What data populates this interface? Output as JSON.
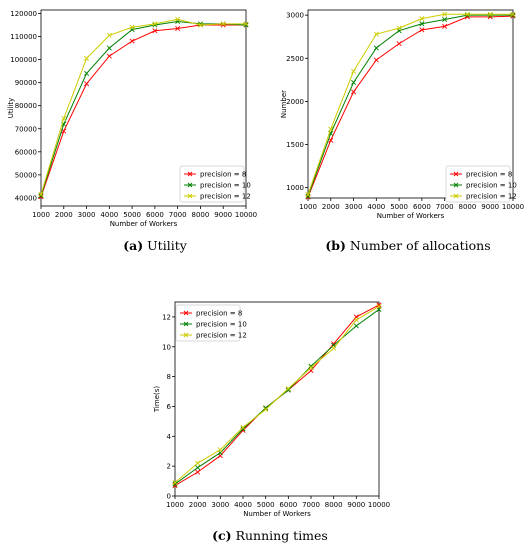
{
  "captions": [
    {
      "letter": "(a)",
      "text": "Utility"
    },
    {
      "letter": "(b)",
      "text": "Number of allocations"
    },
    {
      "letter": "(c)",
      "text": "Running times"
    }
  ],
  "chart_data": [
    {
      "type": "line",
      "xlabel": "Number of Workers",
      "ylabel": "Utility",
      "x": [
        1000,
        2000,
        3000,
        4000,
        5000,
        6000,
        7000,
        8000,
        9000,
        10000
      ],
      "xlim": [
        1000,
        10000
      ],
      "ylim": [
        36500,
        121500
      ],
      "yticks": [
        40000,
        50000,
        60000,
        70000,
        80000,
        90000,
        100000,
        110000,
        120000
      ],
      "legend_position": "lower-right",
      "series": [
        {
          "name": "precision = 8",
          "color": "#ff0000",
          "values": [
            40500,
            69000,
            89500,
            101500,
            108000,
            112500,
            113500,
            115000,
            115000,
            115000
          ]
        },
        {
          "name": "precision = 10",
          "color": "#008000",
          "values": [
            41000,
            72000,
            94000,
            105000,
            113000,
            115000,
            116500,
            115500,
            115500,
            115000
          ]
        },
        {
          "name": "precision = 12",
          "color": "#cccc00",
          "values": [
            41500,
            74500,
            100500,
            110500,
            114000,
            115500,
            117500,
            115000,
            115500,
            115500
          ]
        }
      ]
    },
    {
      "type": "line",
      "xlabel": "Number of Workers",
      "ylabel": "Number",
      "x": [
        1000,
        2000,
        3000,
        4000,
        5000,
        6000,
        7000,
        8000,
        9000,
        10000
      ],
      "xlim": [
        1000,
        10000
      ],
      "ylim": [
        880,
        3060
      ],
      "yticks": [
        1000,
        1500,
        2000,
        2500,
        3000
      ],
      "legend_position": "lower-right",
      "series": [
        {
          "name": "precision = 8",
          "color": "#ff0000",
          "values": [
            890,
            1550,
            2110,
            2480,
            2670,
            2830,
            2870,
            2980,
            2980,
            2990
          ]
        },
        {
          "name": "precision = 10",
          "color": "#008000",
          "values": [
            900,
            1630,
            2220,
            2620,
            2820,
            2900,
            2950,
            3000,
            3000,
            3000
          ]
        },
        {
          "name": "precision = 12",
          "color": "#cccc00",
          "values": [
            920,
            1680,
            2350,
            2780,
            2850,
            2960,
            3010,
            3010,
            3010,
            3010
          ]
        }
      ]
    },
    {
      "type": "line",
      "xlabel": "Number of Workers",
      "ylabel": "Time(s)",
      "x": [
        1000,
        2000,
        3000,
        4000,
        5000,
        6000,
        7000,
        8000,
        9000,
        10000
      ],
      "xlim": [
        1000,
        10000
      ],
      "ylim": [
        0,
        13
      ],
      "yticks": [
        0,
        2,
        4,
        6,
        8,
        10,
        12
      ],
      "legend_position": "upper-left",
      "series": [
        {
          "name": "precision = 8",
          "color": "#ff0000",
          "values": [
            0.7,
            1.6,
            2.7,
            4.4,
            5.9,
            7.1,
            8.4,
            10.2,
            12.0,
            12.8
          ]
        },
        {
          "name": "precision = 10",
          "color": "#008000",
          "values": [
            0.8,
            1.9,
            2.9,
            4.5,
            5.9,
            7.1,
            8.7,
            10.1,
            11.4,
            12.5
          ]
        },
        {
          "name": "precision = 12",
          "color": "#cccc00",
          "values": [
            0.9,
            2.2,
            3.1,
            4.6,
            5.8,
            7.2,
            8.6,
            9.9,
            11.8,
            12.7
          ]
        }
      ]
    }
  ]
}
